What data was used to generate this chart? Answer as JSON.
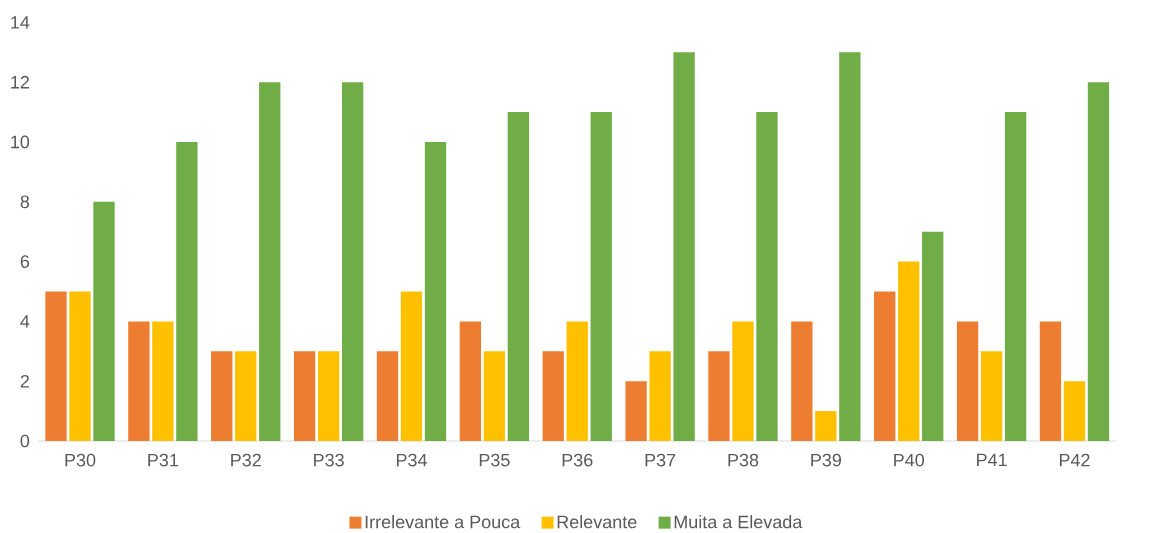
{
  "chart_data": {
    "type": "bar",
    "categories": [
      "P30",
      "P31",
      "P32",
      "P33",
      "P34",
      "P35",
      "P36",
      "P37",
      "P38",
      "P39",
      "P40",
      "P41",
      "P42"
    ],
    "series": [
      {
        "name": "Irrelevante a Pouca",
        "color": "#ed7d31",
        "values": [
          5,
          4,
          3,
          3,
          3,
          4,
          3,
          2,
          3,
          4,
          5,
          4,
          4
        ]
      },
      {
        "name": "Relevante",
        "color": "#ffc000",
        "values": [
          5,
          4,
          3,
          3,
          5,
          3,
          4,
          3,
          4,
          1,
          6,
          3,
          2
        ]
      },
      {
        "name": "Muita a Elevada",
        "color": "#70ad47",
        "values": [
          8,
          10,
          12,
          12,
          10,
          11,
          11,
          13,
          11,
          13,
          7,
          11,
          12
        ]
      }
    ],
    "ylim": [
      0,
      14
    ],
    "yticks": [
      0,
      2,
      4,
      6,
      8,
      10,
      12,
      14
    ],
    "legend": "bottom"
  }
}
